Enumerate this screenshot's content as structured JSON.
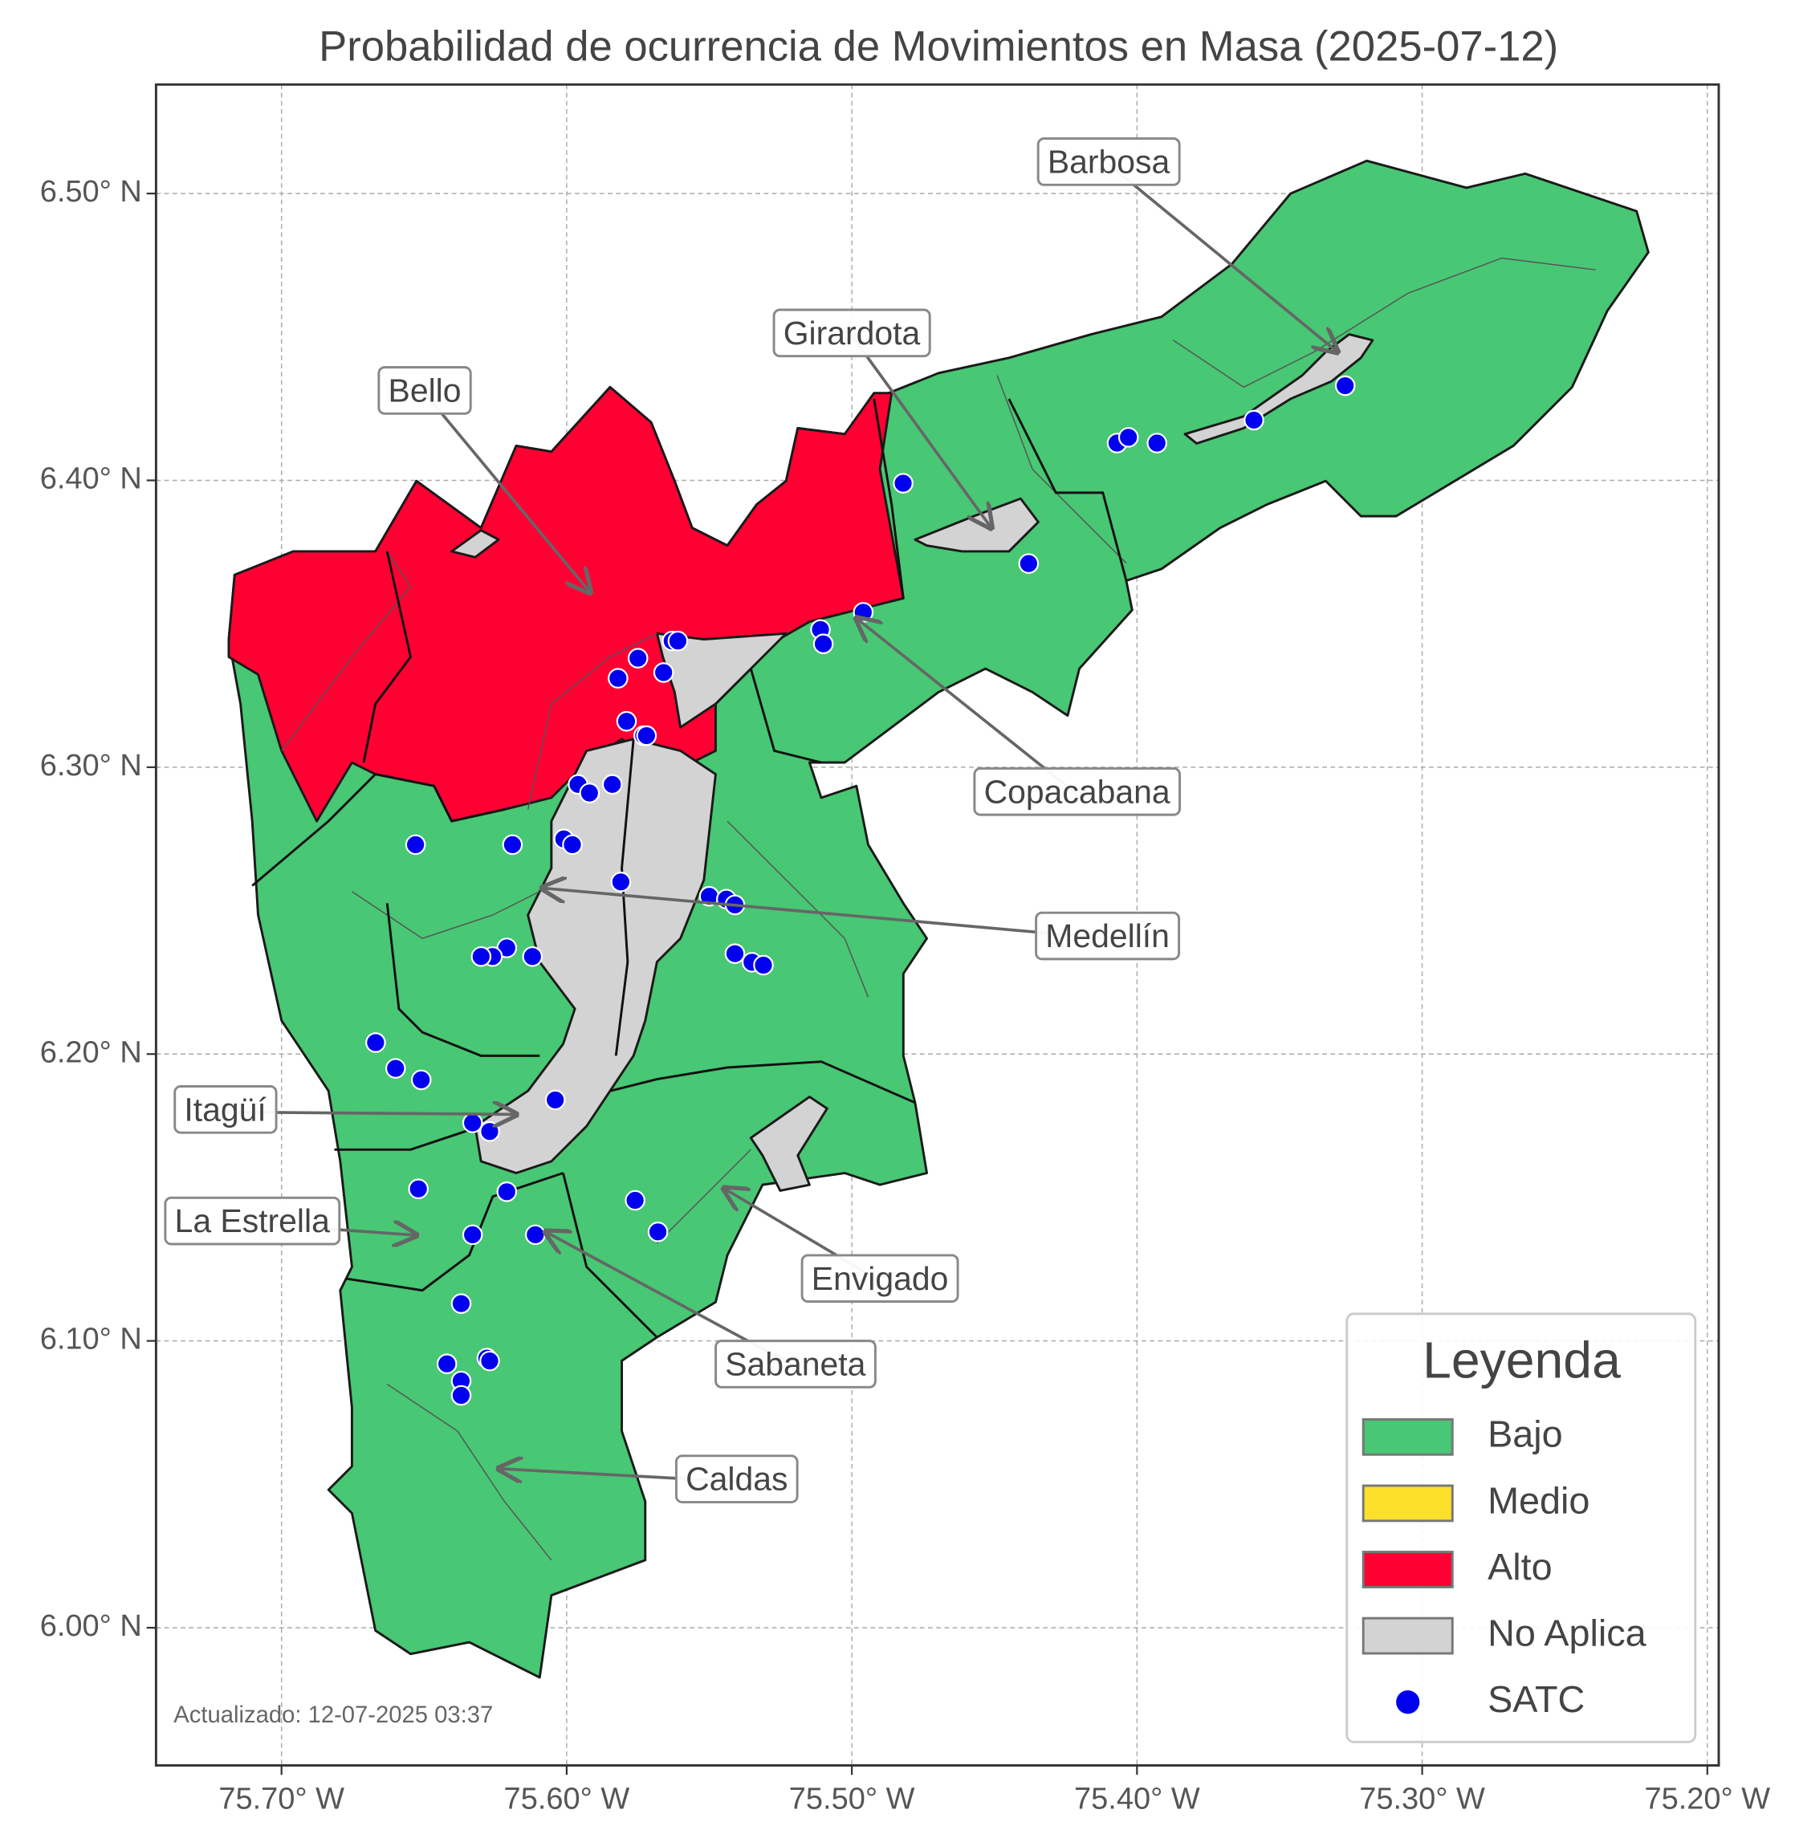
{
  "map": {
    "title": "Probabilidad de ocurrencia de Movimientos en Masa (2025-07-12)",
    "xlim": [
      -75.744,
      -75.196
    ],
    "ylim": [
      5.952,
      6.538
    ],
    "xticks": [
      {
        "value": -75.7,
        "label": "75.70° W"
      },
      {
        "value": -75.6,
        "label": "75.60° W"
      },
      {
        "value": -75.5,
        "label": "75.50° W"
      },
      {
        "value": -75.4,
        "label": "75.40° W"
      },
      {
        "value": -75.3,
        "label": "75.30° W"
      },
      {
        "value": -75.2,
        "label": "75.20° W"
      }
    ],
    "yticks": [
      {
        "value": 6.0,
        "label": "6.00° N"
      },
      {
        "value": 6.1,
        "label": "6.10° N"
      },
      {
        "value": 6.2,
        "label": "6.20° N"
      },
      {
        "value": 6.3,
        "label": "6.30° N"
      },
      {
        "value": 6.4,
        "label": "6.40° N"
      },
      {
        "value": 6.5,
        "label": "6.50° N"
      }
    ],
    "grid": true,
    "annotations": [
      "Barbosa",
      "Girardota",
      "Bello",
      "Copacabana",
      "Medellín",
      "Itagüí",
      "La Estrella",
      "Envigado",
      "Sabaneta",
      "Caldas"
    ],
    "footer": "Actualizado: 12-07-2025 03:37",
    "legend": {
      "title": "Leyenda",
      "entries": [
        {
          "name": "Bajo",
          "color": "#48c774"
        },
        {
          "name": "Medio",
          "color": "#fde02a"
        },
        {
          "name": "Alto",
          "color": "#ff0033"
        },
        {
          "name": "No Aplica",
          "color": "#d3d3d3"
        }
      ]
    },
    "satc": {
      "name": "SATC",
      "color": "#0000ee",
      "lon": [
        -75.482,
        -75.438,
        -75.407,
        -75.403,
        -75.393,
        -75.359,
        -75.327,
        -75.511,
        -75.51,
        -75.496,
        -75.563,
        -75.561,
        -75.575,
        -75.566,
        -75.582,
        -75.579,
        -75.573,
        -75.572,
        -75.596,
        -75.592,
        -75.584,
        -75.653,
        -75.619,
        -75.601,
        -75.598,
        -75.581,
        -75.55,
        -75.544,
        -75.541,
        -75.541,
        -75.535,
        -75.531,
        -75.621,
        -75.626,
        -75.63,
        -75.612,
        -75.667,
        -75.66,
        -75.651,
        -75.604,
        -75.633,
        -75.627,
        -75.652,
        -75.621,
        -75.576,
        -75.568,
        -75.633,
        -75.611,
        -75.637,
        -75.642,
        -75.637,
        -75.637,
        -75.628,
        -75.627
      ],
      "lat": [
        6.399,
        6.371,
        6.413,
        6.415,
        6.413,
        6.421,
        6.433,
        6.348,
        6.343,
        6.354,
        6.344,
        6.344,
        6.338,
        6.333,
        6.331,
        6.316,
        6.311,
        6.311,
        6.294,
        6.291,
        6.294,
        6.273,
        6.273,
        6.275,
        6.273,
        6.26,
        6.255,
        6.254,
        6.252,
        6.235,
        6.232,
        6.231,
        6.237,
        6.234,
        6.234,
        6.234,
        6.204,
        6.195,
        6.191,
        6.184,
        6.176,
        6.173,
        6.153,
        6.152,
        6.149,
        6.138,
        6.137,
        6.137,
        6.113,
        6.092,
        6.086,
        6.081,
        6.094,
        6.093
      ]
    }
  }
}
